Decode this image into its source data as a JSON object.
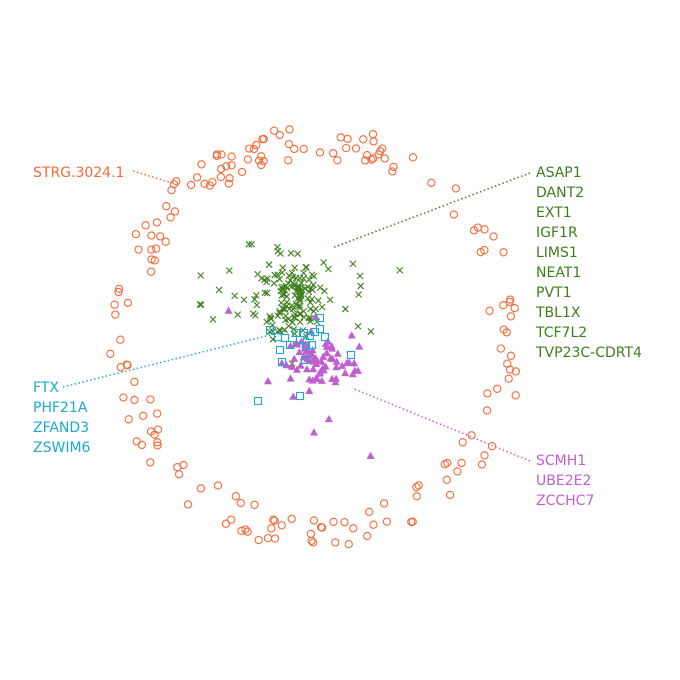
{
  "chart_data": {
    "type": "scatter",
    "colors": {
      "outer_ring": "#F26B38",
      "cross": "#3D7F1D",
      "square": "#1FA8D0",
      "triangle": "#C060D0"
    },
    "annotations": [
      {
        "group": "outer_ring",
        "labels": [
          "STRG.3024.1"
        ]
      },
      {
        "group": "cross",
        "labels": [
          "ASAP1",
          "DANT2",
          "EXT1",
          "IGF1R",
          "LIMS1",
          "NEAT1",
          "PVT1",
          "TBL1X",
          "TCF7L2",
          "TVP23C-CDRT4"
        ]
      },
      {
        "group": "square",
        "labels": [
          "FTX",
          "PHF21A",
          "ZFAND3",
          "ZSWIM6"
        ]
      },
      {
        "group": "triangle",
        "labels": [
          "SCMH1",
          "UBE2E2",
          "ZCCHC7"
        ]
      }
    ],
    "series": [
      {
        "marker": "open-circle",
        "color_key": "outer_ring",
        "count": 180
      },
      {
        "marker": "x",
        "color_key": "cross",
        "count": 160
      },
      {
        "marker": "open-square",
        "color_key": "square",
        "count": 20
      },
      {
        "marker": "triangle",
        "color_key": "triangle",
        "count": 75
      }
    ]
  }
}
